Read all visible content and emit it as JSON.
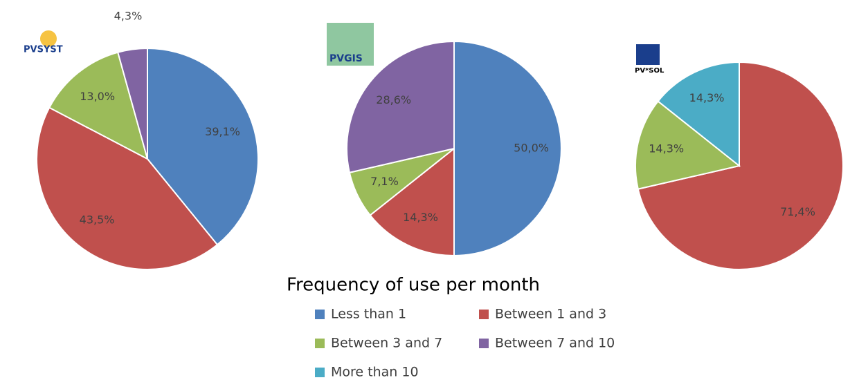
{
  "chart_data": [
    {
      "type": "pie",
      "logo": "PVSYST",
      "categories": [
        "Less than 1",
        "Between 1 and 3",
        "Between 3 and 7",
        "Between 7 and 10"
      ],
      "values": [
        39.1,
        43.5,
        13.0,
        4.3
      ],
      "value_labels": [
        "39,1%",
        "43,5%",
        "13,0%",
        "4,3%"
      ],
      "colors": [
        "#4f81bd",
        "#c0504d",
        "#9bbb59",
        "#8064a2"
      ]
    },
    {
      "type": "pie",
      "logo": "PVGIS",
      "categories": [
        "Less than 1",
        "Between 1 and 3",
        "Between 3 and 7",
        "Between 7 and 10"
      ],
      "values": [
        50.0,
        14.3,
        7.1,
        28.6
      ],
      "value_labels": [
        "50,0%",
        "14,3%",
        "7,1%",
        "28,6%"
      ],
      "colors": [
        "#4f81bd",
        "#c0504d",
        "#9bbb59",
        "#8064a2"
      ]
    },
    {
      "type": "pie",
      "logo": "PV*SOL",
      "categories": [
        "Between 1 and 3",
        "Between 3 and 7",
        "More than 10"
      ],
      "values": [
        71.4,
        14.3,
        14.3
      ],
      "value_labels": [
        "71,4%",
        "14,3%",
        "14,3%"
      ],
      "colors": [
        "#c0504d",
        "#9bbb59",
        "#4bacc6"
      ]
    }
  ],
  "legend": {
    "title": "Frequency of use per month",
    "entries": [
      {
        "name": "Less than 1",
        "color": "#4f81bd"
      },
      {
        "name": "Between 1 and 3",
        "color": "#c0504d"
      },
      {
        "name": "Between 3 and 7",
        "color": "#9bbb59"
      },
      {
        "name": "Between 7 and 10",
        "color": "#8064a2"
      },
      {
        "name": "More than 10",
        "color": "#4bacc6"
      }
    ]
  }
}
